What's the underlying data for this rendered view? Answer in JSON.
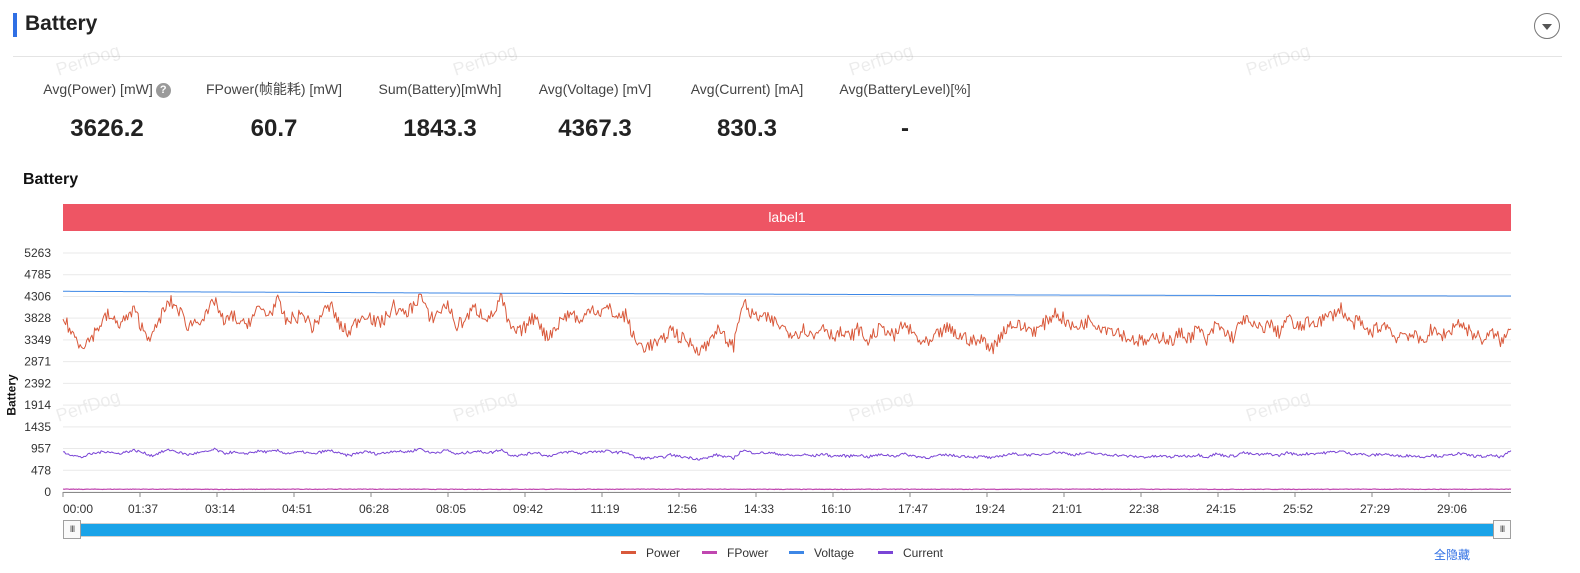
{
  "header": {
    "title": "Battery"
  },
  "watermark_text": "PerfDog",
  "metrics": [
    {
      "label": "Avg(Power) [mW]",
      "value": "3626.2",
      "has_help": true
    },
    {
      "label": "FPower(帧能耗) [mW]",
      "value": "60.7"
    },
    {
      "label": "Sum(Battery)[mWh]",
      "value": "1843.3"
    },
    {
      "label": "Avg(Voltage) [mV]",
      "value": "4367.3"
    },
    {
      "label": "Avg(Current) [mA]",
      "value": "830.3"
    },
    {
      "label": "Avg(BatteryLevel)[%]",
      "value": "-"
    }
  ],
  "help_glyph": "?",
  "chart_section": {
    "title": "Battery",
    "band_label": "label1"
  },
  "legend": {
    "items": [
      {
        "name": "Power",
        "color": "#d9593b"
      },
      {
        "name": "FPower",
        "color": "#c046b0"
      },
      {
        "name": "Voltage",
        "color": "#3d87e6"
      },
      {
        "name": "Current",
        "color": "#7a45d6"
      }
    ],
    "hide_all_label": "全隐藏"
  },
  "slider": {
    "start": 0,
    "end": 1,
    "handle_glyph": "III"
  },
  "chart_data": {
    "type": "line",
    "ylabel": "Battery",
    "ylim": [
      0,
      5263
    ],
    "yticks": [
      "5263",
      "4785",
      "4306",
      "3828",
      "3349",
      "2871",
      "2392",
      "1914",
      "1435",
      "957",
      "478",
      "0"
    ],
    "xticks": [
      "00:00",
      "01:37",
      "03:14",
      "04:51",
      "06:28",
      "08:05",
      "09:42",
      "11:19",
      "12:56",
      "14:33",
      "16:10",
      "17:47",
      "19:24",
      "21:01",
      "22:38",
      "24:15",
      "25:52",
      "27:29",
      "29:06"
    ],
    "x_domain_seconds": [
      0,
      1835
    ],
    "grid": "horizontal",
    "series": [
      {
        "name": "Power",
        "color": "#d9593b",
        "values": [
          3840,
          3500,
          3250,
          3350,
          3650,
          3900,
          3700,
          3800,
          4000,
          3550,
          3400,
          3900,
          4200,
          4000,
          3650,
          3800,
          3850,
          4250,
          3700,
          3900,
          3650,
          3800,
          4050,
          3900,
          4200,
          3750,
          3850,
          3900,
          3600,
          3950,
          4100,
          3650,
          3500,
          3800,
          3950,
          3700,
          3800,
          4100,
          3900,
          4050,
          4350,
          3800,
          3950,
          4150,
          3650,
          3800,
          4050,
          3900,
          3850,
          4300,
          3600,
          3500,
          3700,
          3900,
          3400,
          3600,
          3850,
          3950,
          3700,
          4100,
          3950,
          4050,
          3850,
          3900,
          3300,
          3200,
          3250,
          3300,
          3600,
          3400,
          3300,
          3150,
          3200,
          3600,
          3400,
          3200,
          4200,
          3900,
          3850,
          3800,
          3700,
          3550,
          3500,
          3600,
          3400,
          3700,
          3450,
          3500,
          3400,
          3600,
          3300,
          3550,
          3600,
          3400,
          3700,
          3500,
          3300,
          3250,
          3500,
          3600,
          3450,
          3400,
          3300,
          3350,
          3150,
          3500,
          3700,
          3650,
          3600,
          3550,
          3750,
          3950,
          3800,
          3600,
          3700,
          3800,
          3650,
          3600,
          3550,
          3400,
          3350,
          3300,
          3350,
          3450,
          3300,
          3500,
          3400,
          3600,
          3300,
          3700,
          3500,
          3400,
          3850,
          3650,
          3600,
          3700,
          3500,
          3850,
          3600,
          3700,
          3750,
          3800,
          3900,
          4050,
          3700,
          3750,
          3500,
          3600,
          3700,
          3400,
          3500,
          3450,
          3300,
          3550,
          3450,
          3500,
          3750,
          3600,
          3450,
          3350,
          3500,
          3300,
          3600
        ]
      },
      {
        "name": "FPower",
        "color": "#c046b0",
        "values": [
          60,
          62,
          58,
          61,
          63,
          59,
          60,
          61,
          62,
          60,
          58,
          61,
          60,
          62,
          61,
          59,
          60,
          61,
          60,
          62
        ]
      },
      {
        "name": "Voltage",
        "color": "#3d87e6",
        "values": [
          4420,
          4412,
          4404,
          4398,
          4390,
          4382,
          4376,
          4370,
          4364,
          4358,
          4352,
          4347,
          4342,
          4337,
          4333,
          4329,
          4325,
          4321,
          4318,
          4315
        ]
      },
      {
        "name": "Current",
        "color": "#7a45d6",
        "values": [
          880,
          820,
          760,
          830,
          870,
          900,
          840,
          880,
          920,
          860,
          800,
          880,
          930,
          870,
          820,
          860,
          880,
          940,
          850,
          880,
          830,
          870,
          900,
          880,
          910,
          850,
          870,
          880,
          830,
          890,
          910,
          840,
          800,
          860,
          890,
          840,
          860,
          910,
          880,
          900,
          960,
          860,
          880,
          920,
          830,
          860,
          900,
          880,
          870,
          940,
          820,
          800,
          840,
          880,
          790,
          820,
          870,
          890,
          840,
          900,
          880,
          900,
          870,
          880,
          760,
          740,
          750,
          760,
          820,
          780,
          760,
          730,
          740,
          820,
          780,
          740,
          920,
          870,
          860,
          860,
          840,
          810,
          800,
          820,
          790,
          840,
          790,
          800,
          790,
          820,
          770,
          810,
          820,
          790,
          840,
          800,
          770,
          760,
          800,
          820,
          790,
          790,
          770,
          780,
          740,
          800,
          840,
          830,
          820,
          810,
          850,
          880,
          860,
          820,
          840,
          860,
          830,
          820,
          810,
          790,
          780,
          770,
          780,
          790,
          770,
          800,
          790,
          820,
          770,
          840,
          800,
          790,
          870,
          830,
          820,
          840,
          800,
          870,
          820,
          840,
          850,
          860,
          880,
          900,
          840,
          850,
          800,
          820,
          840,
          790,
          800,
          800,
          770,
          810,
          790,
          800,
          850,
          820,
          790,
          780,
          800,
          770,
          900
        ]
      }
    ]
  }
}
